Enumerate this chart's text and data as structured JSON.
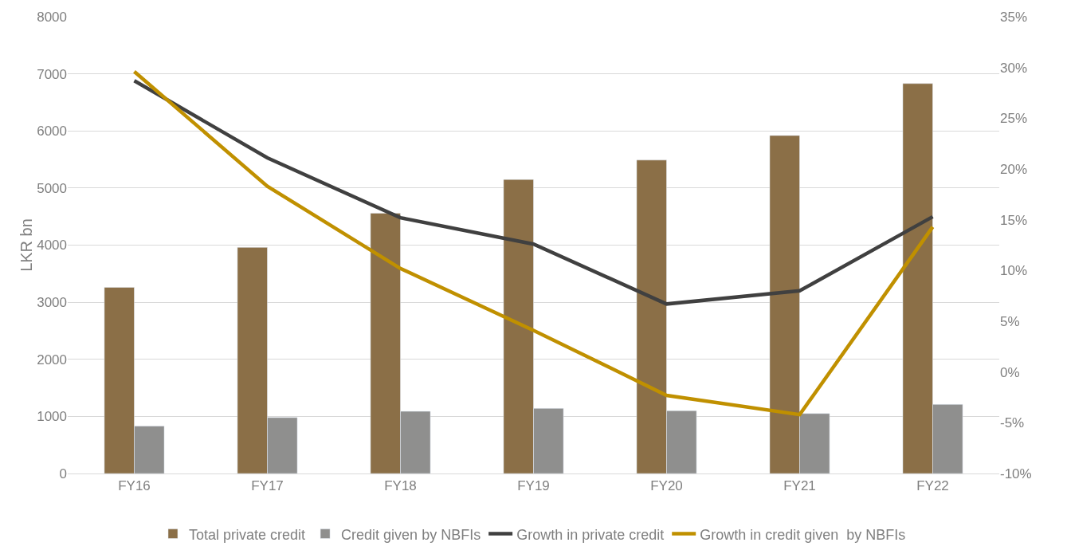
{
  "chart_data": {
    "type": "bar",
    "ylabel": "LKR bn",
    "categories": [
      "FY16",
      "FY17",
      "FY18",
      "FY19",
      "FY20",
      "FY21",
      "FY22"
    ],
    "series": [
      {
        "name": "Total private credit",
        "color": "#8b6f47",
        "values": [
          3260,
          3960,
          4560,
          5150,
          5490,
          5920,
          6830
        ]
      },
      {
        "name": "Credit given by NBFIs",
        "color": "#8f8f8e",
        "values": [
          830,
          980,
          1090,
          1140,
          1100,
          1050,
          1210
        ]
      },
      {
        "name": "Growth in private credit",
        "type": "line",
        "axis": "y2",
        "color": "#404040",
        "values": [
          28.7,
          21.1,
          15.2,
          12.6,
          6.7,
          8.0,
          15.3
        ]
      },
      {
        "name": "Growth in credit given  by NBFIs",
        "type": "line",
        "axis": "y2",
        "color": "#c09000",
        "values": [
          29.6,
          18.3,
          10.2,
          4.1,
          -2.3,
          -4.2,
          14.3
        ]
      }
    ],
    "ylim": [
      0,
      8000
    ],
    "yticks": [
      0,
      1000,
      2000,
      3000,
      4000,
      5000,
      6000,
      7000,
      8000
    ],
    "y2lim": [
      -10,
      35
    ],
    "y2ticks": [
      {
        "value": -10,
        "label": "-10%"
      },
      {
        "value": -5,
        "label": "-5%"
      },
      {
        "value": 0,
        "label": "0%"
      },
      {
        "value": 5,
        "label": "5%"
      },
      {
        "value": 10,
        "label": "10%"
      },
      {
        "value": 15,
        "label": "15%"
      },
      {
        "value": 20,
        "label": "20%"
      },
      {
        "value": 25,
        "label": "25%"
      },
      {
        "value": 30,
        "label": "30%"
      },
      {
        "value": 35,
        "label": "35%"
      }
    ],
    "grid": "y",
    "legend": "bottom",
    "marker": "none",
    "line_style": "solid"
  }
}
